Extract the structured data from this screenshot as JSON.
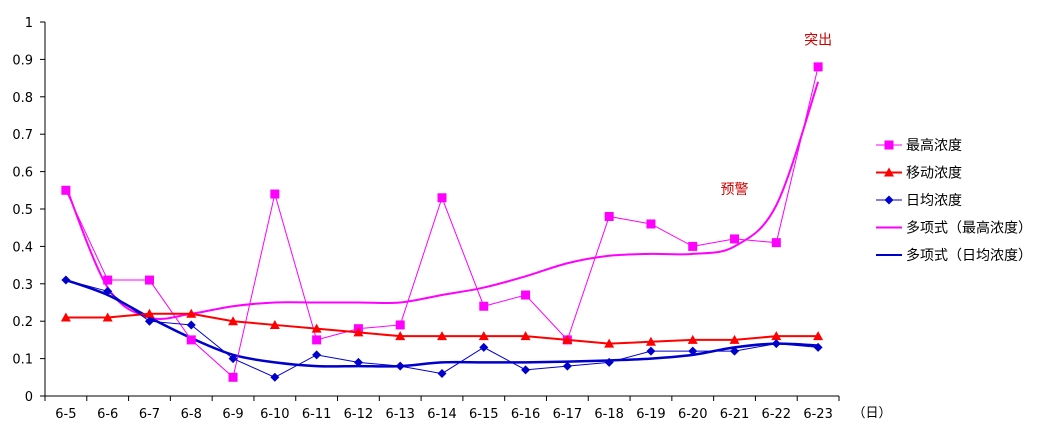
{
  "chart_data": {
    "type": "line",
    "x_unit_label": "（日）",
    "categories": [
      "6-5",
      "6-6",
      "6-7",
      "6-8",
      "6-9",
      "6-10",
      "6-11",
      "6-12",
      "6-13",
      "6-14",
      "6-15",
      "6-16",
      "6-17",
      "6-18",
      "6-19",
      "6-20",
      "6-21",
      "6-22",
      "6-23"
    ],
    "ylim": [
      0,
      1
    ],
    "yticks": [
      0,
      0.1,
      0.2,
      0.3,
      0.4,
      0.5,
      0.6,
      0.7,
      0.8,
      0.9,
      1
    ],
    "ytick_labels": [
      "0",
      "0.1",
      "0.2",
      "0.3",
      "0.4",
      "0.5",
      "0.6",
      "0.7",
      "0.8",
      "0.9",
      "1"
    ],
    "grid": false,
    "legend_position": "right",
    "series": [
      {
        "name": "最高浓度",
        "color": "#ff00ff",
        "marker": "square",
        "values": [
          0.55,
          0.31,
          0.31,
          0.15,
          0.05,
          0.54,
          0.15,
          0.18,
          0.19,
          0.53,
          0.24,
          0.27,
          0.15,
          0.48,
          0.46,
          0.4,
          0.42,
          0.41,
          0.88
        ]
      },
      {
        "name": "移动浓度",
        "color": "#ff0000",
        "marker": "triangle",
        "values": [
          0.21,
          0.21,
          0.22,
          0.22,
          0.2,
          0.19,
          0.18,
          0.17,
          0.16,
          0.16,
          0.16,
          0.16,
          0.15,
          0.14,
          0.145,
          0.15,
          0.15,
          0.16,
          0.16
        ]
      },
      {
        "name": "日均浓度",
        "color": "#0000cc",
        "marker": "diamond",
        "values": [
          0.31,
          0.28,
          0.2,
          0.19,
          0.1,
          0.05,
          0.11,
          0.09,
          0.08,
          0.06,
          0.13,
          0.07,
          0.08,
          0.09,
          0.12,
          0.12,
          0.12,
          0.14,
          0.13
        ]
      },
      {
        "name": "多项式（最高浓度）",
        "color": "#ff00ff",
        "marker": "none",
        "trend": true,
        "values": [
          0.56,
          0.29,
          0.21,
          0.22,
          0.24,
          0.25,
          0.25,
          0.25,
          0.25,
          0.27,
          0.29,
          0.32,
          0.355,
          0.375,
          0.38,
          0.38,
          0.4,
          0.51,
          0.84
        ]
      },
      {
        "name": "多项式（日均浓度）",
        "color": "#0000cc",
        "marker": "none",
        "trend": true,
        "values": [
          0.31,
          0.27,
          0.21,
          0.155,
          0.11,
          0.09,
          0.08,
          0.08,
          0.08,
          0.09,
          0.09,
          0.09,
          0.092,
          0.095,
          0.1,
          0.11,
          0.13,
          0.14,
          0.135
        ]
      }
    ],
    "annotations": [
      {
        "text": "突出",
        "color": "#cc0000",
        "at_category": "6-23",
        "at_value": 0.94
      },
      {
        "text": "预警",
        "color": "#cc0000",
        "at_category": "6-21",
        "at_value": 0.54
      }
    ]
  }
}
